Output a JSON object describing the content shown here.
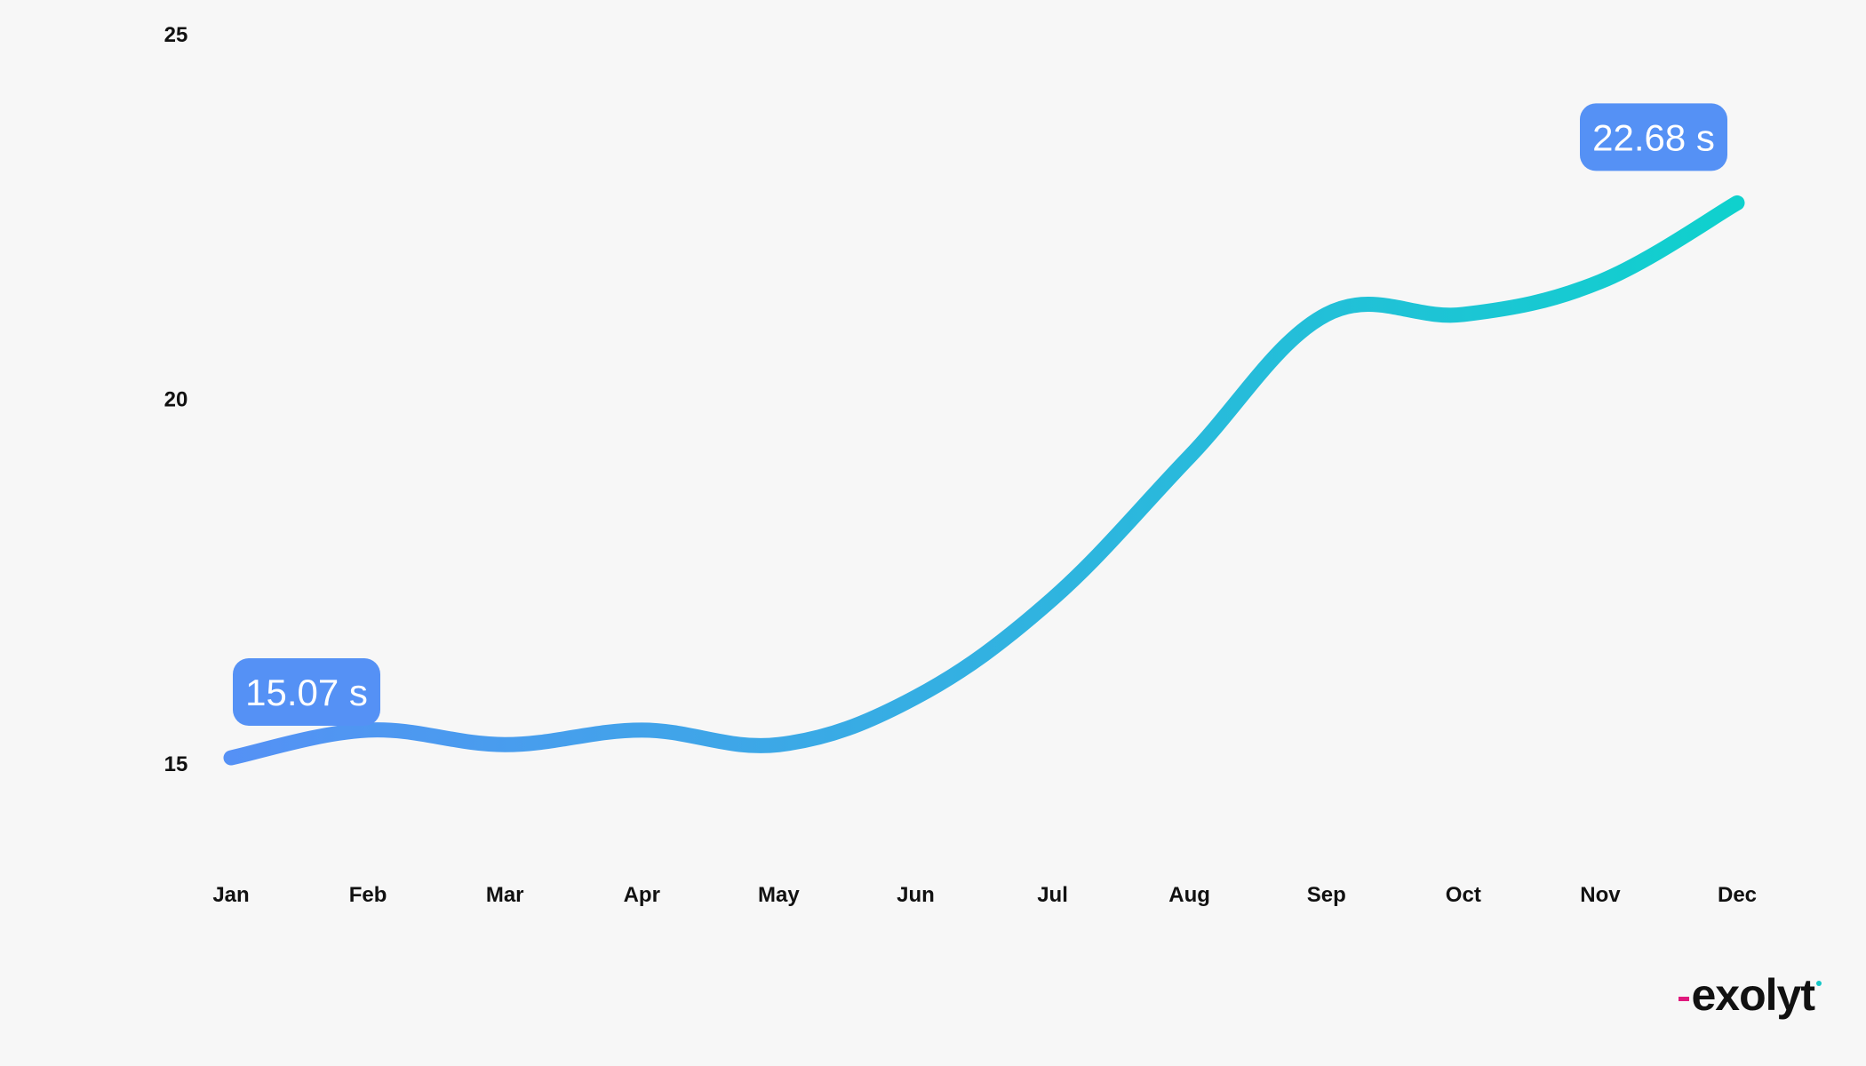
{
  "chart_data": {
    "type": "line",
    "categories": [
      "Jan",
      "Feb",
      "Mar",
      "Apr",
      "May",
      "Jun",
      "Jul",
      "Aug",
      "Sep",
      "Oct",
      "Nov",
      "Dec"
    ],
    "values": [
      15.07,
      15.45,
      15.25,
      15.45,
      15.25,
      15.9,
      17.25,
      19.2,
      21.15,
      21.15,
      21.6,
      22.68
    ],
    "ylim": [
      12,
      25
    ],
    "yticks": [
      {
        "value": 15,
        "label": "15"
      },
      {
        "value": 20,
        "label": "20"
      },
      {
        "value": 25,
        "label": "25"
      }
    ],
    "annotations": [
      {
        "category": "Jan",
        "value": 15.07,
        "label": "15.07 s"
      },
      {
        "category": "Dec",
        "value": 22.68,
        "label": "22.68 s"
      }
    ],
    "title": "",
    "xlabel": "",
    "ylabel": "",
    "grid": false,
    "legend": "none",
    "colors": {
      "line_start": "#5591f5",
      "line_end": "#0fd1cd",
      "callout_bg": "#5591f5",
      "callout_text": "#ffffff",
      "tick_text": "#111111",
      "background": "#f7f7f7"
    }
  },
  "brand": {
    "logo_text": "exolyt",
    "logo_icon": "exolyt-logo"
  }
}
